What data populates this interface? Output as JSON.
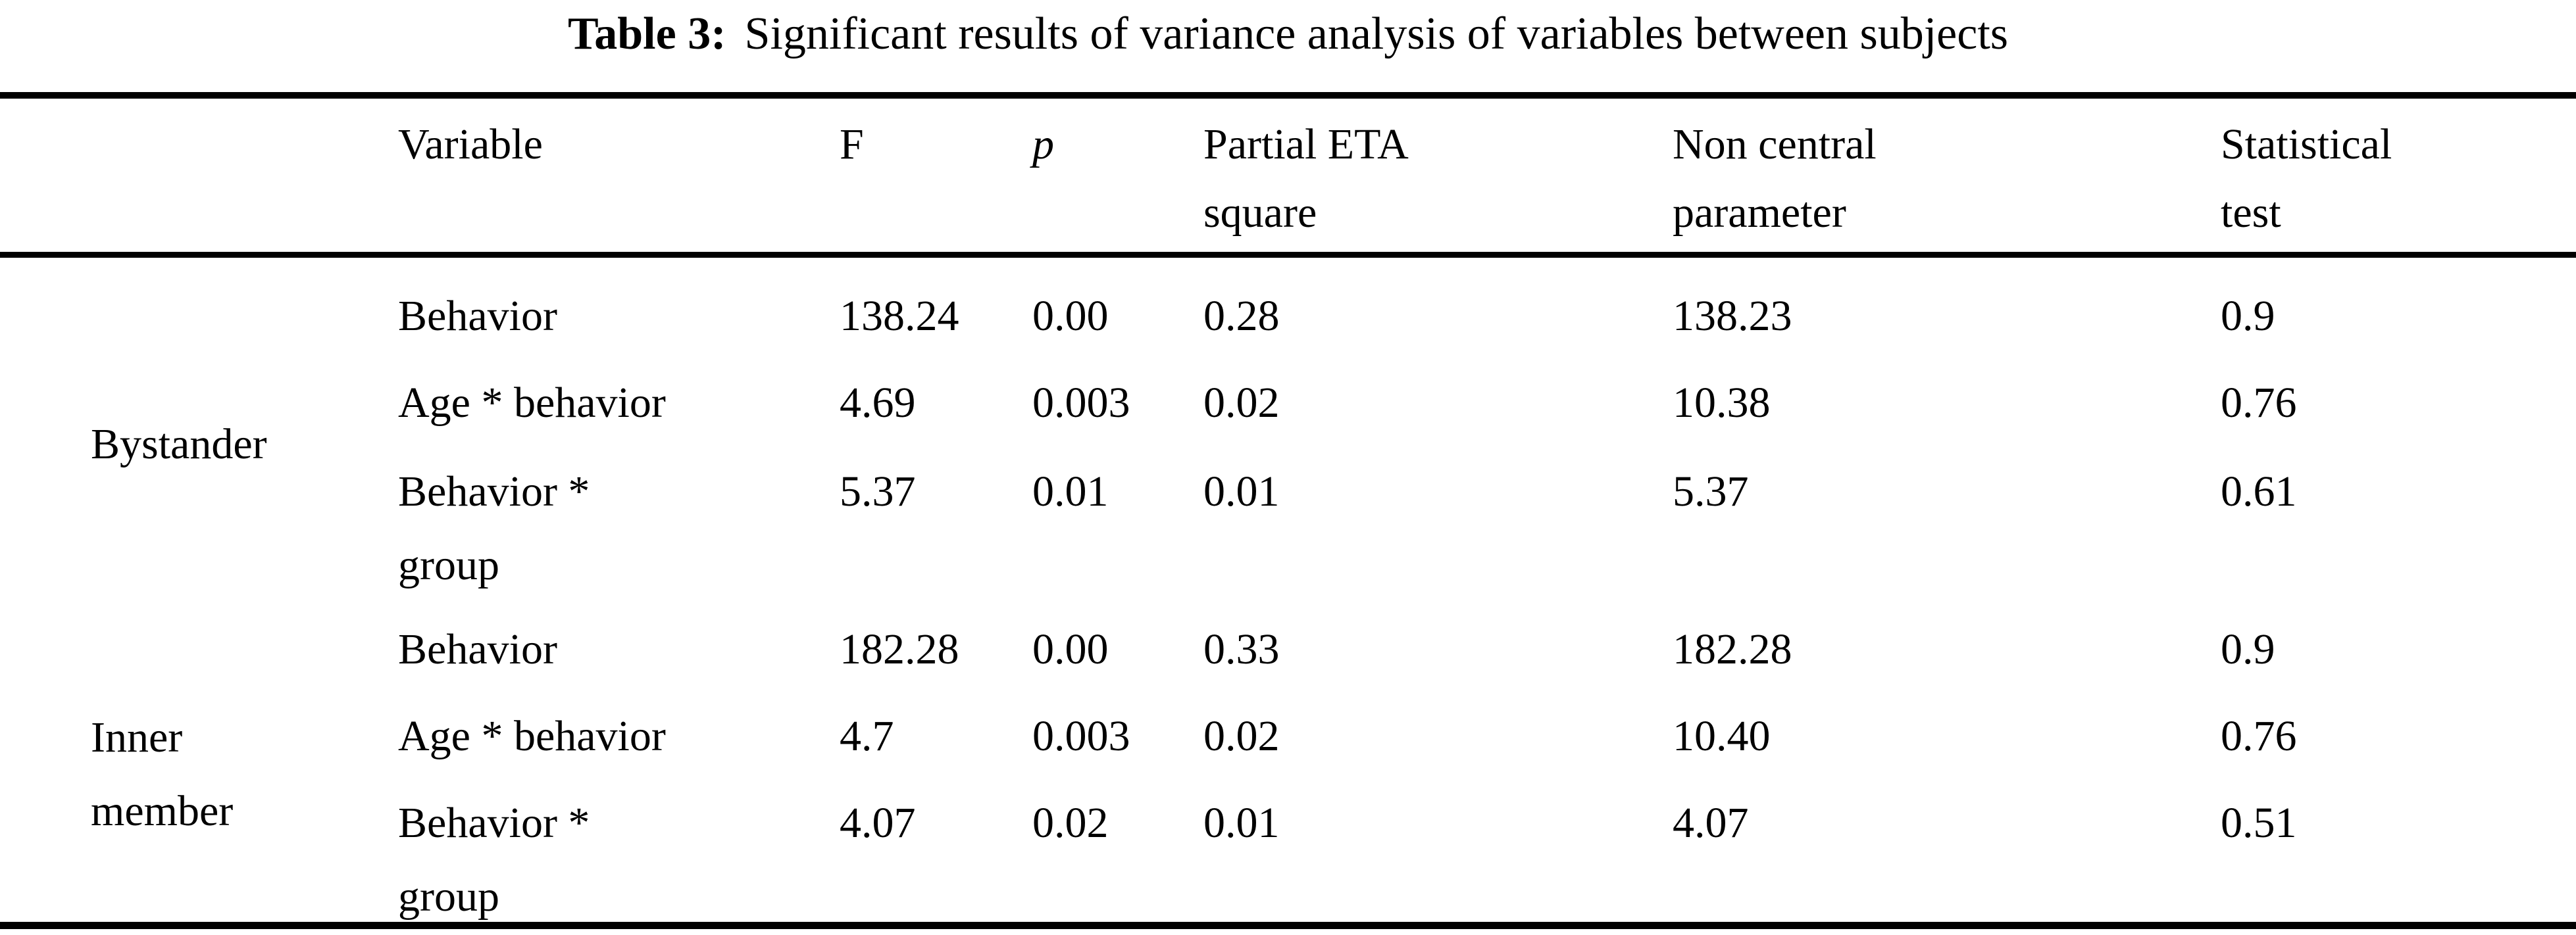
{
  "title": {
    "label": "Table 3:",
    "text": "Significant results of variance analysis of variables between subjects"
  },
  "table": {
    "headers": {
      "variable": "Variable",
      "f": "F",
      "p": "p",
      "partial_eta_square": "Partial ETA\nsquare",
      "non_central_parameter": "Non central\nparameter",
      "statistical_test": "Statistical\ntest"
    },
    "groups": [
      {
        "label": "Bystander"
      },
      {
        "label": "Inner\nmember"
      }
    ],
    "rows": [
      {
        "group": "Bystander",
        "variable": "Behavior",
        "f": "138.24",
        "p": "0.00",
        "partial_eta_square": "0.28",
        "non_central_parameter": "138.23",
        "statistical_test": "0.9"
      },
      {
        "group": "Bystander",
        "variable": "Age * behavior",
        "f": "4.69",
        "p": "0.003",
        "partial_eta_square": "0.02",
        "non_central_parameter": "10.38",
        "statistical_test": "0.76"
      },
      {
        "group": "Bystander",
        "variable": "Behavior *\ngroup",
        "f": "5.37",
        "p": "0.01",
        "partial_eta_square": "0.01",
        "non_central_parameter": "5.37",
        "statistical_test": "0.61"
      },
      {
        "group": "Inner member",
        "variable": "Behavior",
        "f": "182.28",
        "p": "0.00",
        "partial_eta_square": "0.33",
        "non_central_parameter": "182.28",
        "statistical_test": "0.9"
      },
      {
        "group": "Inner member",
        "variable": "Age * behavior",
        "f": "4.7",
        "p": "0.003",
        "partial_eta_square": "0.02",
        "non_central_parameter": "10.40",
        "statistical_test": "0.76"
      },
      {
        "group": "Inner member",
        "variable": "Behavior *\ngroup",
        "f": "4.07",
        "p": "0.02",
        "partial_eta_square": "0.01",
        "non_central_parameter": "4.07",
        "statistical_test": "0.51"
      }
    ]
  }
}
